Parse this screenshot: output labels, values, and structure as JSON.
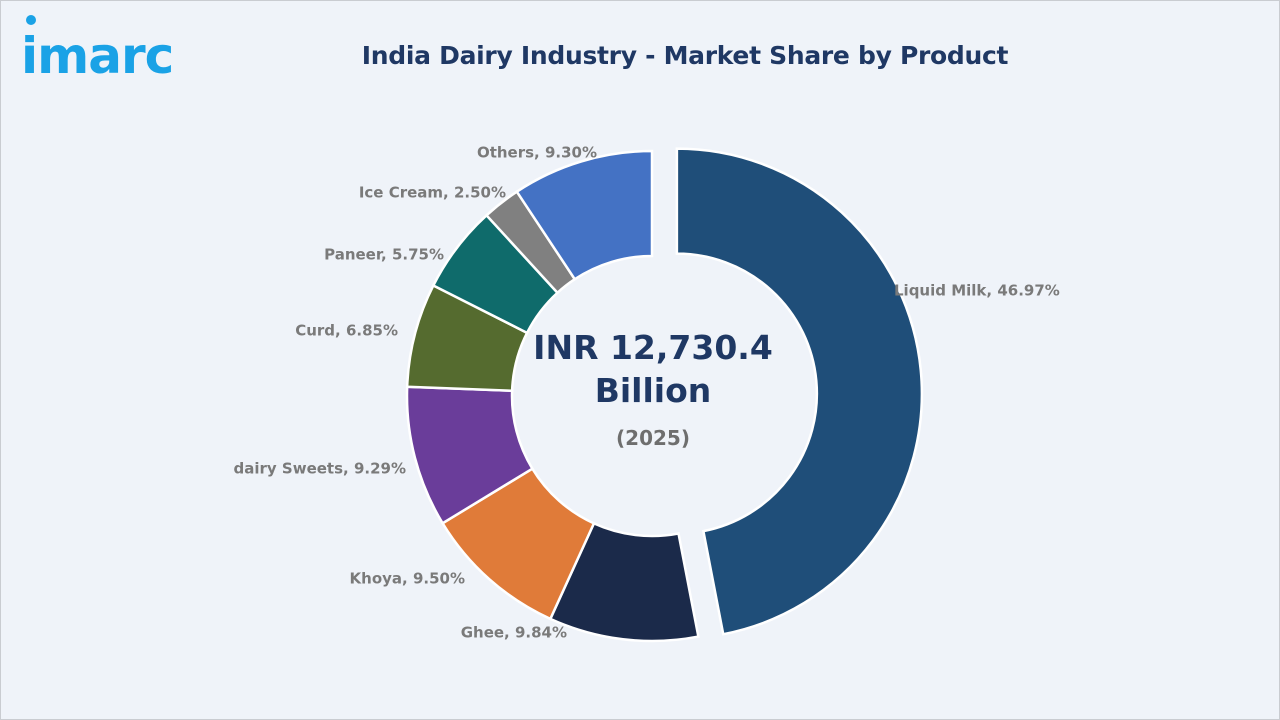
{
  "brand": {
    "name": "imarc",
    "color": "#1aa2e6"
  },
  "title": "India Dairy Industry - Market Share by Product",
  "center": {
    "total_line1": "INR 12,730.4",
    "total_line2": "Billion",
    "year": "(2025)"
  },
  "chart_data": {
    "type": "pie",
    "variant": "donut",
    "title": "India Dairy Industry - Market Share by Product",
    "unit": "%",
    "slices": [
      {
        "label": "Liquid Milk",
        "value": 46.97,
        "display": "Liquid Milk, 46.97%",
        "color": "#1f4e79",
        "exploded": true
      },
      {
        "label": "Ghee",
        "value": 9.84,
        "display": "Ghee, 9.84%",
        "color": "#1b2a4a"
      },
      {
        "label": "Khoya",
        "value": 9.5,
        "display": "Khoya, 9.50%",
        "color": "#e07b39"
      },
      {
        "label": "dairy Sweets",
        "value": 9.29,
        "display": "dairy Sweets, 9.29%",
        "color": "#6a3d9a"
      },
      {
        "label": "Curd",
        "value": 6.85,
        "display": "Curd, 6.85%",
        "color": "#556b2f"
      },
      {
        "label": "Paneer",
        "value": 5.75,
        "display": "Paneer, 5.75%",
        "color": "#0f6b6b"
      },
      {
        "label": "Ice Cream",
        "value": 2.5,
        "display": "Ice Cream, 2.50%",
        "color": "#808080"
      },
      {
        "label": "Others",
        "value": 9.3,
        "display": "Others, 9.30%",
        "color": "#4472c4"
      }
    ]
  }
}
